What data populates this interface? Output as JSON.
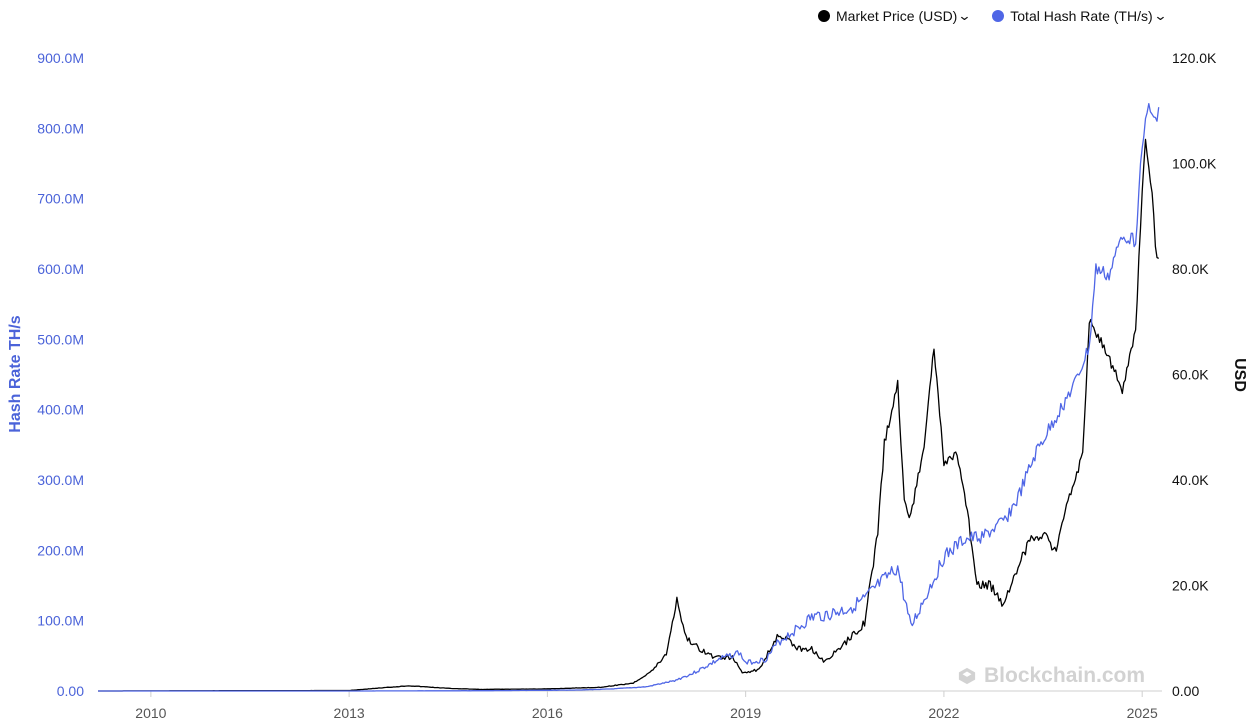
{
  "legend": {
    "items": [
      {
        "label": "Market Price (USD)",
        "color": "#000000",
        "chevron": "chevron-down-icon"
      },
      {
        "label": "Total Hash Rate (TH/s)",
        "color": "#4f66e6",
        "chevron": "chevron-down-icon"
      }
    ]
  },
  "watermark": {
    "text": "Blockchain.com",
    "icon": "blockchain-logo-icon"
  },
  "chart_data": {
    "type": "line",
    "grid": false,
    "legend_position": "top-right",
    "x_ticks": [
      "2010",
      "2013",
      "2016",
      "2019",
      "2022",
      "2025"
    ],
    "x_range": [
      2009.2,
      2025.3
    ],
    "left_axis": {
      "label": "Hash Rate TH/s",
      "ticks": [
        "0.00",
        "100.0M",
        "200.0M",
        "300.0M",
        "400.0M",
        "500.0M",
        "600.0M",
        "700.0M",
        "800.0M",
        "900.0M"
      ],
      "range": [
        0,
        900
      ]
    },
    "right_axis": {
      "label": "USD",
      "ticks": [
        "0.00",
        "20.0K",
        "40.0K",
        "60.0K",
        "80.0K",
        "100.0K",
        "120.0K"
      ],
      "range": [
        0,
        120000
      ]
    },
    "series": [
      {
        "name": "Total Hash Rate (TH/s)",
        "axis": "left",
        "color": "#4f66e6",
        "unit": "M TH/s",
        "points": [
          [
            2009.2,
            0
          ],
          [
            2013.0,
            0
          ],
          [
            2014.0,
            0.2
          ],
          [
            2015.0,
            0.4
          ],
          [
            2016.0,
            1.0
          ],
          [
            2016.5,
            1.5
          ],
          [
            2017.0,
            3
          ],
          [
            2017.5,
            6
          ],
          [
            2017.9,
            14
          ],
          [
            2018.2,
            25
          ],
          [
            2018.6,
            45
          ],
          [
            2018.9,
            55
          ],
          [
            2019.0,
            40
          ],
          [
            2019.3,
            45
          ],
          [
            2019.5,
            70
          ],
          [
            2019.8,
            90
          ],
          [
            2020.0,
            105
          ],
          [
            2020.3,
            110
          ],
          [
            2020.5,
            115
          ],
          [
            2020.8,
            130
          ],
          [
            2021.0,
            150
          ],
          [
            2021.3,
            175
          ],
          [
            2021.5,
            90
          ],
          [
            2021.7,
            130
          ],
          [
            2022.0,
            190
          ],
          [
            2022.3,
            215
          ],
          [
            2022.6,
            220
          ],
          [
            2022.9,
            240
          ],
          [
            2023.1,
            270
          ],
          [
            2023.4,
            340
          ],
          [
            2023.7,
            390
          ],
          [
            2024.0,
            440
          ],
          [
            2024.2,
            490
          ],
          [
            2024.3,
            600
          ],
          [
            2024.5,
            590
          ],
          [
            2024.7,
            650
          ],
          [
            2024.9,
            640
          ],
          [
            2025.0,
            780
          ],
          [
            2025.1,
            830
          ],
          [
            2025.2,
            810
          ],
          [
            2025.25,
            830
          ]
        ]
      },
      {
        "name": "Market Price (USD)",
        "axis": "right",
        "color": "#000000",
        "unit": "USD",
        "points": [
          [
            2009.2,
            0
          ],
          [
            2013.0,
            100
          ],
          [
            2013.9,
            1000
          ],
          [
            2014.5,
            500
          ],
          [
            2015.0,
            300
          ],
          [
            2016.0,
            400
          ],
          [
            2016.8,
            700
          ],
          [
            2017.3,
            1500
          ],
          [
            2017.6,
            4000
          ],
          [
            2017.8,
            7000
          ],
          [
            2017.96,
            17500
          ],
          [
            2018.1,
            10000
          ],
          [
            2018.3,
            8000
          ],
          [
            2018.5,
            6500
          ],
          [
            2018.8,
            6300
          ],
          [
            2018.95,
            3500
          ],
          [
            2019.2,
            4000
          ],
          [
            2019.5,
            11000
          ],
          [
            2019.8,
            8000
          ],
          [
            2020.0,
            8000
          ],
          [
            2020.2,
            5500
          ],
          [
            2020.5,
            9000
          ],
          [
            2020.8,
            13000
          ],
          [
            2021.0,
            30000
          ],
          [
            2021.1,
            47000
          ],
          [
            2021.3,
            58000
          ],
          [
            2021.4,
            36000
          ],
          [
            2021.5,
            33000
          ],
          [
            2021.7,
            47000
          ],
          [
            2021.85,
            65000
          ],
          [
            2022.0,
            43000
          ],
          [
            2022.2,
            45000
          ],
          [
            2022.4,
            30000
          ],
          [
            2022.5,
            20000
          ],
          [
            2022.7,
            20000
          ],
          [
            2022.9,
            16500
          ],
          [
            2023.1,
            23000
          ],
          [
            2023.3,
            28500
          ],
          [
            2023.5,
            30000
          ],
          [
            2023.7,
            26500
          ],
          [
            2023.9,
            37000
          ],
          [
            2024.1,
            45000
          ],
          [
            2024.2,
            70000
          ],
          [
            2024.4,
            66000
          ],
          [
            2024.6,
            60000
          ],
          [
            2024.7,
            57000
          ],
          [
            2024.9,
            68000
          ],
          [
            2025.0,
            95000
          ],
          [
            2025.05,
            104000
          ],
          [
            2025.15,
            95000
          ],
          [
            2025.2,
            84000
          ],
          [
            2025.25,
            82000
          ]
        ]
      }
    ]
  }
}
